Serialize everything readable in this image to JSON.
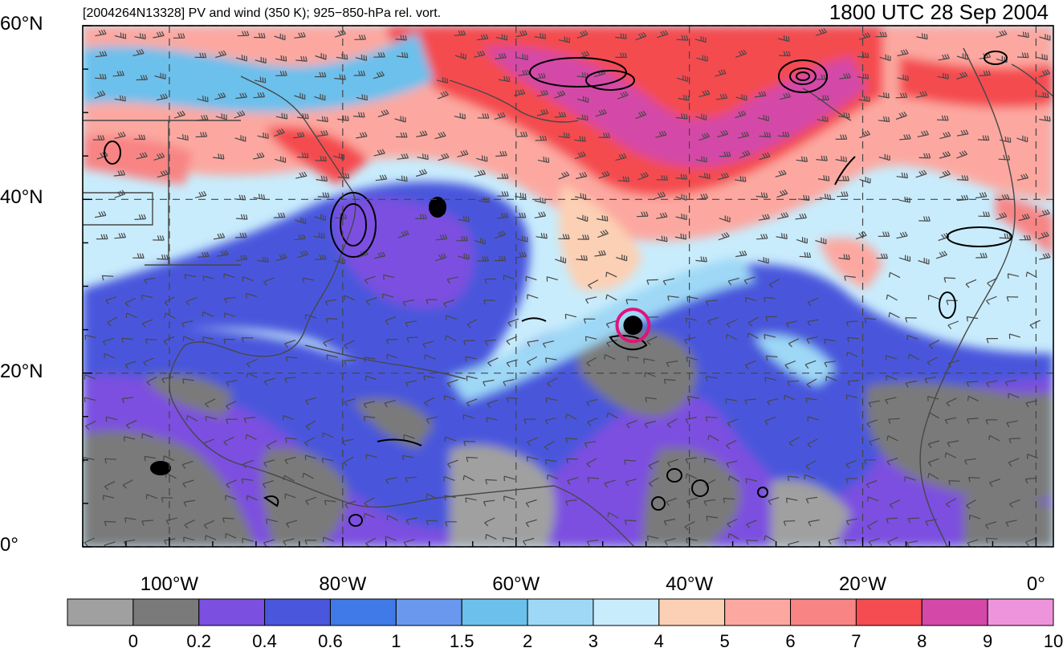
{
  "header": {
    "left_text": "[2004264N13328] PV and wind (350 K); 925−850-hPa rel. vort.",
    "right_text": "1800 UTC 28 Sep 2004"
  },
  "map": {
    "lat_labels": [
      {
        "lat": 60,
        "label": "60°N"
      },
      {
        "lat": 40,
        "label": "40°N"
      },
      {
        "lat": 20,
        "label": "20°N"
      },
      {
        "lat": 0,
        "label": "0°"
      }
    ],
    "lon_labels": [
      {
        "lon": -100,
        "label": "100°W"
      },
      {
        "lon": -80,
        "label": "80°W"
      },
      {
        "lon": -60,
        "label": "60°W"
      },
      {
        "lon": -40,
        "label": "40°W"
      },
      {
        "lon": -20,
        "label": "20°W"
      },
      {
        "lon": 0,
        "label": "0°"
      }
    ],
    "extent": {
      "lon_min": -110,
      "lon_max": 2,
      "lat_min": 0,
      "lat_max": 60
    },
    "gridlines": "dashed",
    "storm_marker": {
      "lon": -46.5,
      "lat": 25.5,
      "color": "#e0137a"
    }
  },
  "colorbar": {
    "levels": [
      "0",
      "0.2",
      "0.4",
      "0.6",
      "1",
      "1.5",
      "2",
      "3",
      "4",
      "5",
      "6",
      "7",
      "8",
      "9",
      "10"
    ],
    "colors": [
      "#a0a0a0",
      "#7a7a7a",
      "#7b4fe0",
      "#4a56dc",
      "#3f7ae8",
      "#6a98ee",
      "#6cc0ec",
      "#9ed8f6",
      "#c8ecfc",
      "#fcd0b4",
      "#fca8a0",
      "#f88484",
      "#f44c50",
      "#d448a8",
      "#ee94dc"
    ]
  }
}
